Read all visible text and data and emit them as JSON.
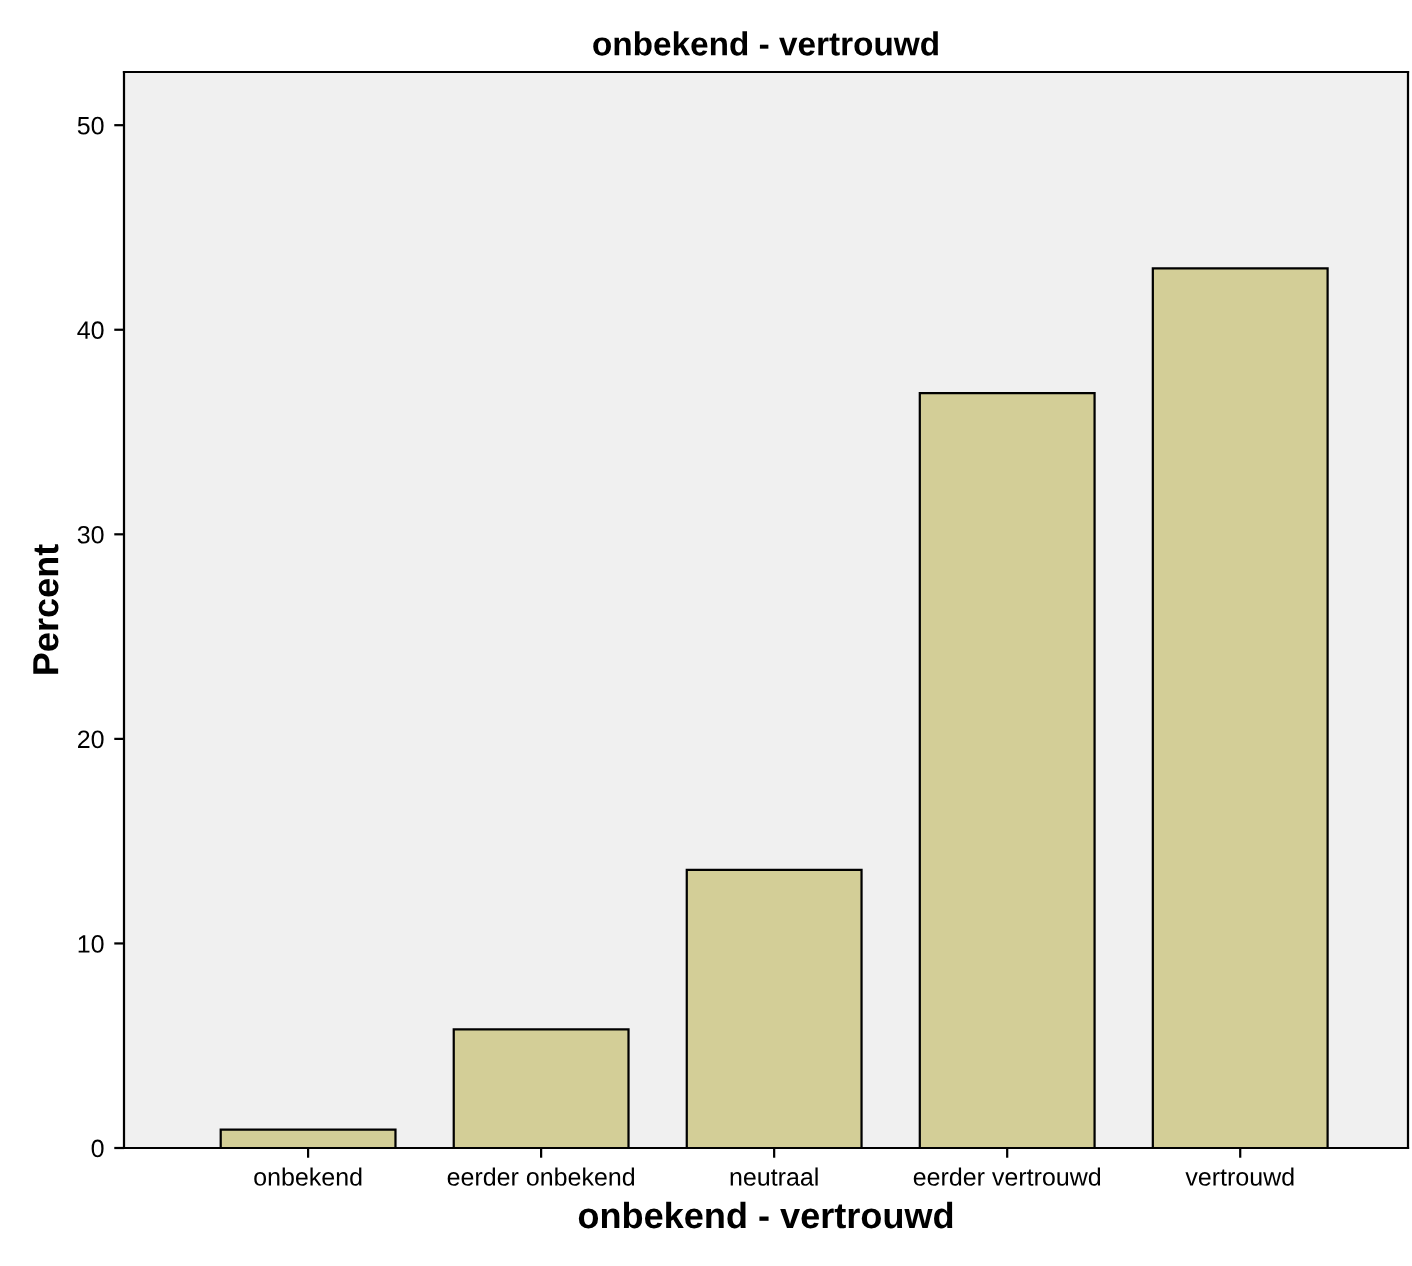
{
  "chart_data": {
    "type": "bar",
    "title": "onbekend - vertrouwd",
    "xlabel": "onbekend - vertrouwd",
    "ylabel": "Percent",
    "categories": [
      "onbekend",
      "eerder onbekend",
      "neutraal",
      "eerder vertrouwd",
      "vertrouwd"
    ],
    "values": [
      0.9,
      5.8,
      13.6,
      36.9,
      43.0
    ],
    "color": "#d3ce97",
    "ylim": [
      0,
      52.6
    ],
    "yticks": [
      0,
      10,
      20,
      30,
      40,
      50
    ],
    "grid": false
  }
}
